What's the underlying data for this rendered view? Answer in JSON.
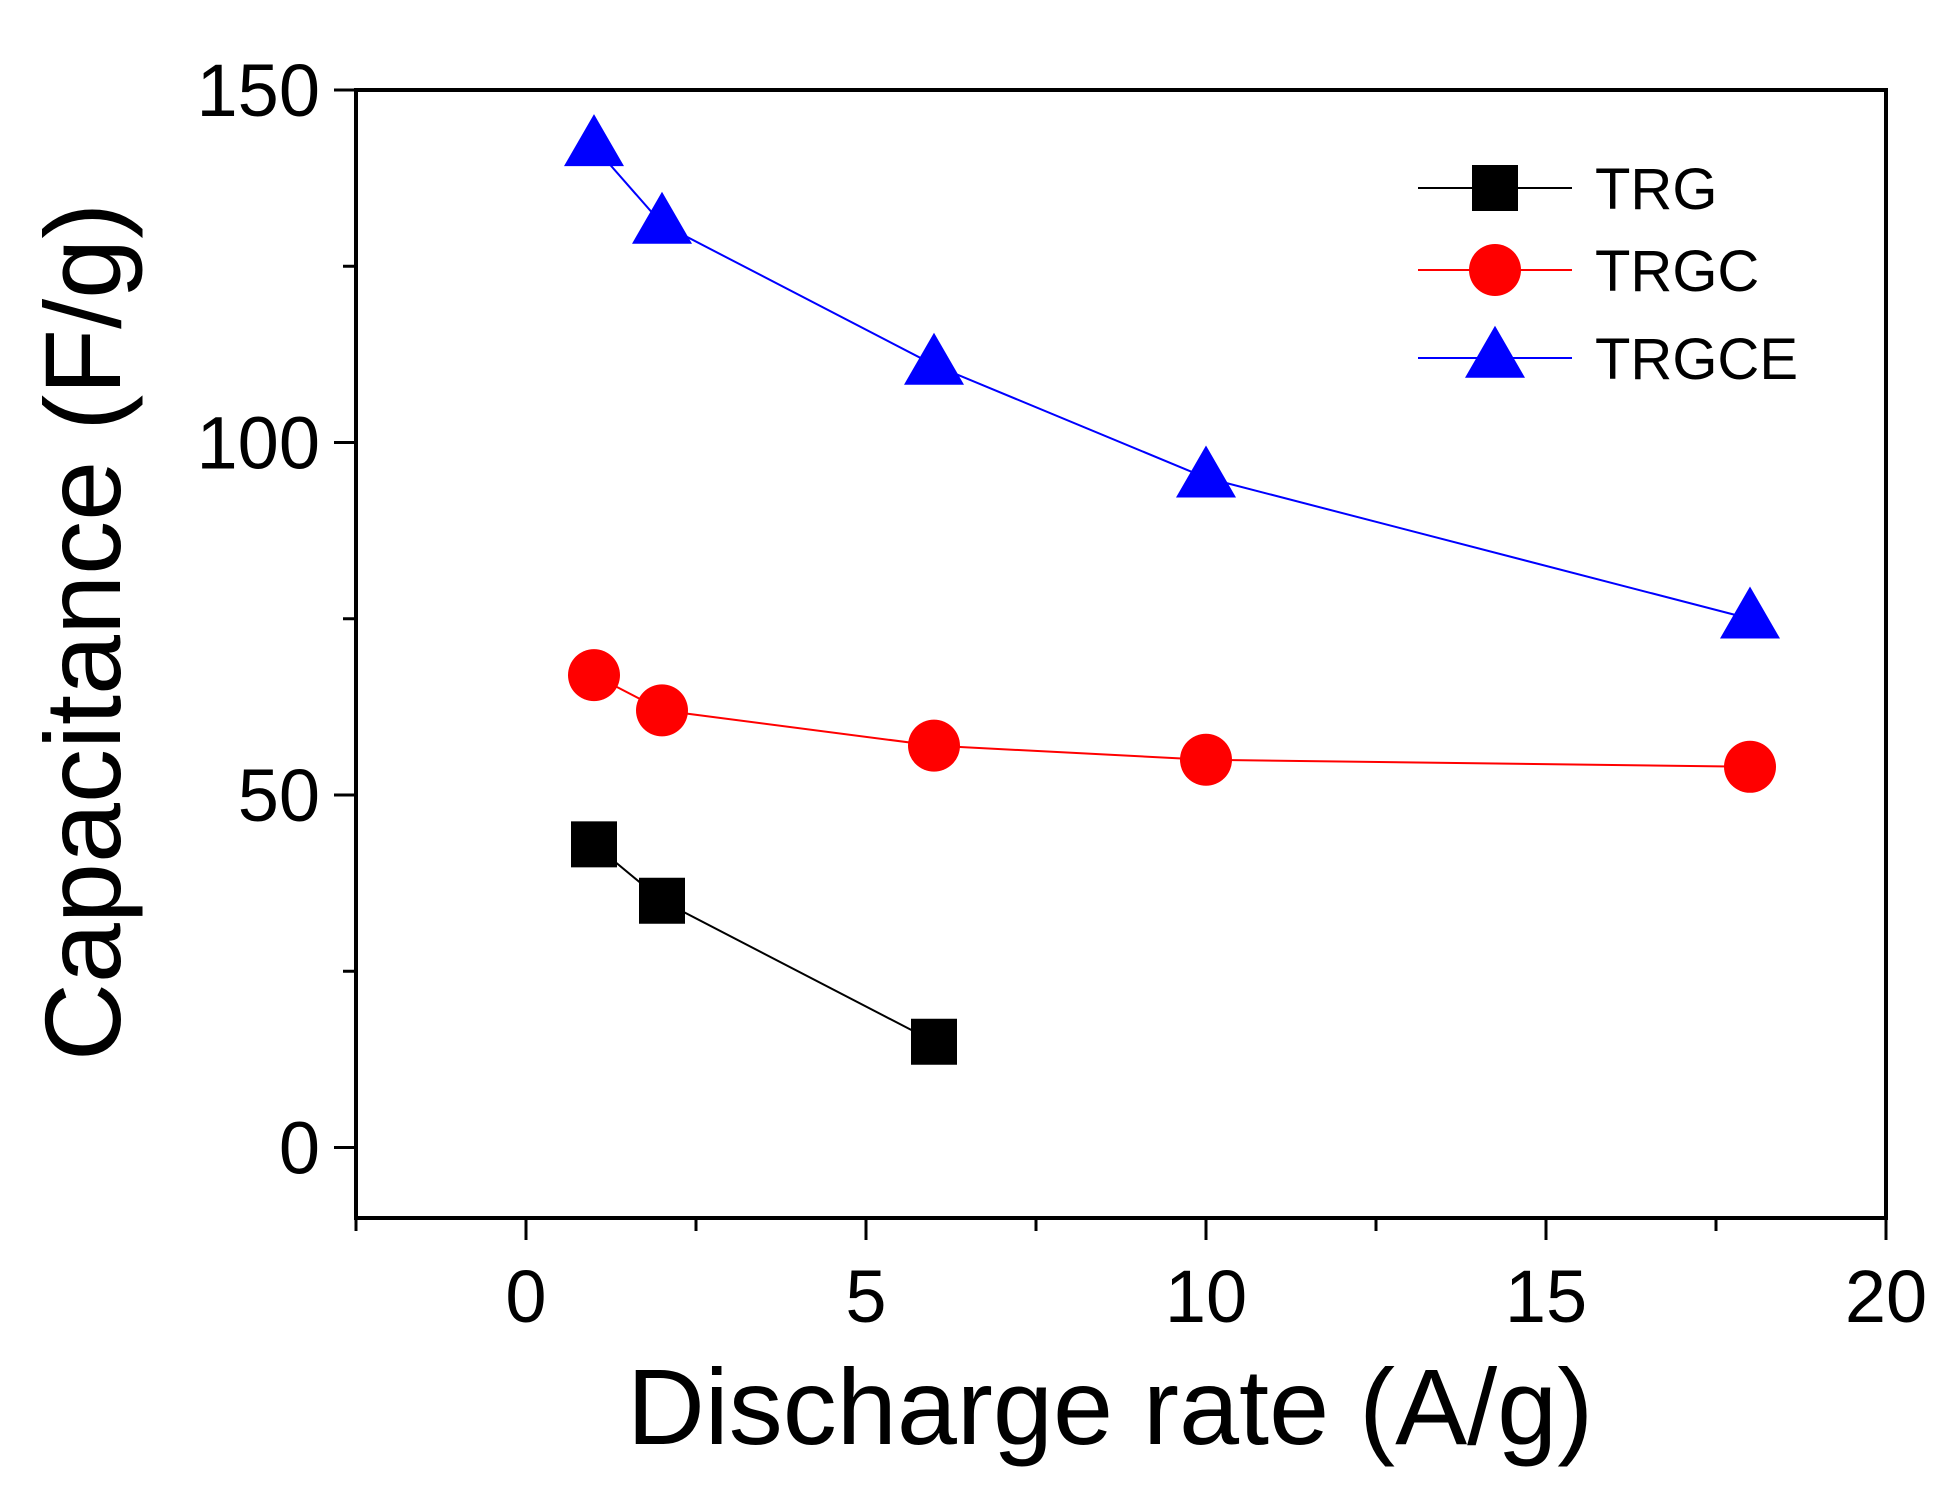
{
  "chart_data": {
    "type": "line",
    "title": "",
    "xlabel": "Discharge rate (A/g)",
    "ylabel": "Capacitance (F/g)",
    "xlim": [
      -2.5,
      20
    ],
    "ylim": [
      -10,
      150
    ],
    "xticks": [
      0,
      5,
      10,
      15,
      20
    ],
    "xtick_labels": [
      "0",
      "5",
      "10",
      "15",
      "20"
    ],
    "yticks": [
      0,
      50,
      100,
      150
    ],
    "ytick_labels": [
      "0",
      "50",
      "100",
      "150"
    ],
    "grid": false,
    "legend_position": "top-right",
    "series": [
      {
        "name": "TRG",
        "color": "#000000",
        "marker": "square",
        "x": [
          1,
          2,
          6
        ],
        "y": [
          43,
          35,
          15
        ]
      },
      {
        "name": "TRGC",
        "color": "#ff0000",
        "marker": "circle",
        "x": [
          1,
          2,
          6,
          10,
          18
        ],
        "y": [
          67,
          62,
          57,
          55,
          54
        ]
      },
      {
        "name": "TRGCE",
        "color": "#0000ff",
        "marker": "triangle",
        "x": [
          1,
          2,
          6,
          10,
          18
        ],
        "y": [
          142,
          131,
          111,
          95,
          75
        ]
      }
    ]
  }
}
